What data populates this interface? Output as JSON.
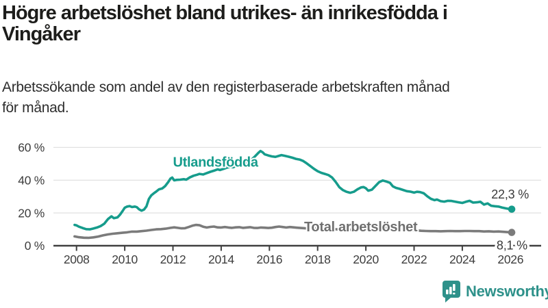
{
  "title": {
    "line1": "Högre arbetslöshet bland utrikes- än inrikesfödda i",
    "line2": "Vingåker",
    "full": "Högre arbetslöshet bland utrikes- än inrikesfödda i Vingåker"
  },
  "subtitle": {
    "line1": "Arbetssökande som andel av den registerbaserade arbetskraften månad",
    "line2": "för månad.",
    "full": "Arbetssökande som andel av den registerbaserade arbetskraften månad för månad."
  },
  "logo": {
    "text": "Newsworthy",
    "icon": "bar-chart-speech-bubble-icon",
    "color": "#2e918a"
  },
  "colors": {
    "accent_teal": "#169c8c",
    "line_gray": "#7b7b7b",
    "label_gray": "#6f6f6f",
    "axis": "#3f3f3f",
    "tick_text": "#3d3d3d",
    "gridline": "#e1e1e1",
    "value_text": "#3a3a3a"
  },
  "chart_data": {
    "type": "line",
    "title": "Högre arbetslöshet bland utrikes- än inrikesfödda i Vingåker",
    "subtitle": "Arbetssökande som andel av den registerbaserade arbetskraften månad för månad.",
    "grid": "horizontal",
    "legend_position": "inline-labels",
    "x_axis": {
      "range": [
        2007.8,
        2026.5
      ],
      "ticks": [
        2008,
        2010,
        2012,
        2014,
        2016,
        2018,
        2020,
        2022,
        2024,
        2026
      ],
      "labels": [
        "2008",
        "2010",
        "2012",
        "2014",
        "2016",
        "2018",
        "2020",
        "2022",
        "2024",
        "2026"
      ]
    },
    "y_axis": {
      "range": [
        0,
        63
      ],
      "unit": "%",
      "ticks": [
        0,
        20,
        40,
        60
      ],
      "labels": [
        "0 %",
        "20 %",
        "40 %",
        "60 %"
      ]
    },
    "series": [
      {
        "name": "Utlandsfödda",
        "color": "#169c8c",
        "label_color": "#169c8c",
        "end_value": 22.3,
        "end_label": "22,3 %",
        "name_label_at": [
          2012.0,
          48.3
        ],
        "name_label_anchor": "start",
        "value_label_at": [
          2026.76,
          28.9
        ],
        "value_label_anchor": "end",
        "value_label_halo": false,
        "points": [
          [
            2007.92,
            12.7
          ],
          [
            2008.0,
            12.4
          ],
          [
            2008.1,
            11.6
          ],
          [
            2008.25,
            10.8
          ],
          [
            2008.4,
            10.1
          ],
          [
            2008.55,
            10.0
          ],
          [
            2008.7,
            10.5
          ],
          [
            2008.85,
            11.1
          ],
          [
            2009.0,
            12.0
          ],
          [
            2009.15,
            13.4
          ],
          [
            2009.3,
            16.2
          ],
          [
            2009.45,
            17.9
          ],
          [
            2009.55,
            16.8
          ],
          [
            2009.7,
            17.3
          ],
          [
            2009.8,
            18.9
          ],
          [
            2009.92,
            21.4
          ],
          [
            2010.0,
            23.2
          ],
          [
            2010.1,
            23.9
          ],
          [
            2010.2,
            24.2
          ],
          [
            2010.3,
            23.6
          ],
          [
            2010.42,
            23.9
          ],
          [
            2010.5,
            23.5
          ],
          [
            2010.6,
            22.2
          ],
          [
            2010.7,
            21.4
          ],
          [
            2010.8,
            22.1
          ],
          [
            2010.9,
            24.0
          ],
          [
            2011.0,
            28.5
          ],
          [
            2011.1,
            30.7
          ],
          [
            2011.2,
            31.9
          ],
          [
            2011.3,
            33.0
          ],
          [
            2011.42,
            34.4
          ],
          [
            2011.55,
            34.9
          ],
          [
            2011.67,
            36.3
          ],
          [
            2011.8,
            38.8
          ],
          [
            2011.9,
            41.0
          ],
          [
            2011.97,
            41.6
          ],
          [
            2012.05,
            39.9
          ],
          [
            2012.15,
            40.2
          ],
          [
            2012.3,
            40.3
          ],
          [
            2012.45,
            40.6
          ],
          [
            2012.55,
            40.3
          ],
          [
            2012.7,
            41.7
          ],
          [
            2012.85,
            42.7
          ],
          [
            2013.0,
            43.3
          ],
          [
            2013.1,
            43.8
          ],
          [
            2013.25,
            43.5
          ],
          [
            2013.4,
            44.3
          ],
          [
            2013.55,
            45.1
          ],
          [
            2013.7,
            45.8
          ],
          [
            2013.85,
            46.6
          ],
          [
            2013.95,
            46.2
          ],
          [
            2014.1,
            46.9
          ],
          [
            2014.25,
            47.7
          ],
          [
            2014.4,
            48.2
          ],
          [
            2014.5,
            47.9
          ],
          [
            2014.65,
            48.9
          ],
          [
            2014.8,
            49.6
          ],
          [
            2014.95,
            50.2
          ],
          [
            2015.1,
            51.1
          ],
          [
            2015.25,
            52.4
          ],
          [
            2015.4,
            54.5
          ],
          [
            2015.55,
            56.8
          ],
          [
            2015.63,
            57.8
          ],
          [
            2015.72,
            57.0
          ],
          [
            2015.8,
            55.8
          ],
          [
            2015.95,
            55.1
          ],
          [
            2016.1,
            54.5
          ],
          [
            2016.25,
            54.2
          ],
          [
            2016.4,
            54.9
          ],
          [
            2016.5,
            55.3
          ],
          [
            2016.65,
            54.8
          ],
          [
            2016.8,
            54.3
          ],
          [
            2016.95,
            53.7
          ],
          [
            2017.1,
            53.0
          ],
          [
            2017.25,
            52.6
          ],
          [
            2017.4,
            51.7
          ],
          [
            2017.55,
            50.2
          ],
          [
            2017.7,
            48.6
          ],
          [
            2017.85,
            46.9
          ],
          [
            2018.0,
            45.5
          ],
          [
            2018.15,
            44.5
          ],
          [
            2018.3,
            43.8
          ],
          [
            2018.45,
            43.1
          ],
          [
            2018.6,
            41.6
          ],
          [
            2018.75,
            38.9
          ],
          [
            2018.9,
            35.7
          ],
          [
            2019.05,
            33.9
          ],
          [
            2019.2,
            32.9
          ],
          [
            2019.35,
            32.3
          ],
          [
            2019.5,
            32.9
          ],
          [
            2019.65,
            34.4
          ],
          [
            2019.8,
            35.6
          ],
          [
            2019.9,
            35.8
          ],
          [
            2020.0,
            35.1
          ],
          [
            2020.1,
            33.6
          ],
          [
            2020.25,
            34.2
          ],
          [
            2020.4,
            36.5
          ],
          [
            2020.55,
            38.8
          ],
          [
            2020.7,
            39.8
          ],
          [
            2020.85,
            39.2
          ],
          [
            2021.0,
            38.4
          ],
          [
            2021.12,
            36.2
          ],
          [
            2021.25,
            35.3
          ],
          [
            2021.4,
            34.7
          ],
          [
            2021.55,
            34.0
          ],
          [
            2021.7,
            33.3
          ],
          [
            2021.85,
            33.0
          ],
          [
            2022.0,
            32.4
          ],
          [
            2022.12,
            32.9
          ],
          [
            2022.25,
            32.7
          ],
          [
            2022.4,
            32.0
          ],
          [
            2022.55,
            30.1
          ],
          [
            2022.7,
            28.6
          ],
          [
            2022.85,
            27.8
          ],
          [
            2022.95,
            28.2
          ],
          [
            2023.1,
            27.2
          ],
          [
            2023.25,
            26.9
          ],
          [
            2023.4,
            27.4
          ],
          [
            2023.55,
            27.3
          ],
          [
            2023.7,
            26.9
          ],
          [
            2023.85,
            26.5
          ],
          [
            2024.0,
            26.1
          ],
          [
            2024.15,
            26.8
          ],
          [
            2024.3,
            27.4
          ],
          [
            2024.45,
            26.3
          ],
          [
            2024.6,
            26.5
          ],
          [
            2024.75,
            26.8
          ],
          [
            2024.9,
            25.1
          ],
          [
            2025.05,
            25.8
          ],
          [
            2025.2,
            24.4
          ],
          [
            2025.35,
            24.1
          ],
          [
            2025.5,
            23.9
          ],
          [
            2025.65,
            23.3
          ],
          [
            2025.8,
            22.8
          ],
          [
            2025.95,
            22.4
          ],
          [
            2026.05,
            22.3
          ]
        ]
      },
      {
        "name": "Total arbetslöshet",
        "color": "#7b7b7b",
        "label_color": "#6f6f6f",
        "end_value": 8.1,
        "end_label": "8,1 %",
        "name_label_at": [
          2017.44,
          8.8
        ],
        "name_label_anchor": "start",
        "value_label_at": [
          2026.7,
          -2.3
        ],
        "value_label_anchor": "end",
        "value_label_halo": true,
        "points": [
          [
            2007.92,
            5.7
          ],
          [
            2008.1,
            5.2
          ],
          [
            2008.3,
            4.9
          ],
          [
            2008.5,
            4.8
          ],
          [
            2008.7,
            5.1
          ],
          [
            2008.9,
            5.6
          ],
          [
            2009.1,
            6.3
          ],
          [
            2009.3,
            6.9
          ],
          [
            2009.5,
            7.3
          ],
          [
            2009.7,
            7.6
          ],
          [
            2009.9,
            7.9
          ],
          [
            2010.1,
            8.2
          ],
          [
            2010.3,
            8.6
          ],
          [
            2010.5,
            8.6
          ],
          [
            2010.7,
            8.9
          ],
          [
            2010.9,
            9.2
          ],
          [
            2011.1,
            9.6
          ],
          [
            2011.3,
            10.0
          ],
          [
            2011.5,
            10.1
          ],
          [
            2011.7,
            10.4
          ],
          [
            2011.9,
            10.9
          ],
          [
            2012.05,
            11.2
          ],
          [
            2012.2,
            10.9
          ],
          [
            2012.35,
            10.6
          ],
          [
            2012.5,
            10.7
          ],
          [
            2012.65,
            11.4
          ],
          [
            2012.8,
            12.2
          ],
          [
            2012.95,
            12.7
          ],
          [
            2013.1,
            12.5
          ],
          [
            2013.25,
            11.6
          ],
          [
            2013.4,
            11.1
          ],
          [
            2013.55,
            11.5
          ],
          [
            2013.7,
            11.7
          ],
          [
            2013.85,
            11.2
          ],
          [
            2014.0,
            11.1
          ],
          [
            2014.15,
            11.4
          ],
          [
            2014.3,
            11.1
          ],
          [
            2014.45,
            10.9
          ],
          [
            2014.6,
            11.2
          ],
          [
            2014.75,
            11.3
          ],
          [
            2014.9,
            10.9
          ],
          [
            2015.05,
            11.1
          ],
          [
            2015.2,
            11.3
          ],
          [
            2015.35,
            10.9
          ],
          [
            2015.5,
            10.8
          ],
          [
            2015.65,
            11.1
          ],
          [
            2015.8,
            11.0
          ],
          [
            2015.95,
            10.8
          ],
          [
            2016.1,
            11.0
          ],
          [
            2016.25,
            11.4
          ],
          [
            2016.4,
            11.7
          ],
          [
            2016.55,
            11.4
          ],
          [
            2016.7,
            11.1
          ],
          [
            2016.85,
            11.4
          ],
          [
            2017.0,
            11.2
          ],
          [
            2017.15,
            11.0
          ],
          [
            2017.3,
            10.8
          ],
          [
            2017.5,
            10.6
          ],
          [
            2017.7,
            10.5
          ],
          [
            2017.9,
            10.5
          ],
          [
            2018.1,
            10.3
          ],
          [
            2018.3,
            10.2
          ],
          [
            2018.5,
            10.2
          ],
          [
            2018.7,
            10.1
          ],
          [
            2018.9,
            9.9
          ],
          [
            2019.1,
            9.8
          ],
          [
            2019.3,
            9.7
          ],
          [
            2019.5,
            9.9
          ],
          [
            2019.7,
            10.0
          ],
          [
            2019.9,
            10.0
          ],
          [
            2020.1,
            10.4
          ],
          [
            2020.3,
            10.9
          ],
          [
            2020.5,
            11.2
          ],
          [
            2020.7,
            11.2
          ],
          [
            2020.9,
            11.0
          ],
          [
            2021.1,
            10.7
          ],
          [
            2021.3,
            10.4
          ],
          [
            2021.5,
            10.1
          ],
          [
            2021.7,
            9.8
          ],
          [
            2021.9,
            9.5
          ],
          [
            2022.1,
            9.3
          ],
          [
            2022.3,
            9.1
          ],
          [
            2022.5,
            9.0
          ],
          [
            2022.7,
            8.9
          ],
          [
            2022.9,
            8.9
          ],
          [
            2023.1,
            8.8
          ],
          [
            2023.3,
            8.9
          ],
          [
            2023.5,
            9.0
          ],
          [
            2023.7,
            8.9
          ],
          [
            2023.9,
            8.9
          ],
          [
            2024.1,
            9.0
          ],
          [
            2024.3,
            9.0
          ],
          [
            2024.5,
            8.9
          ],
          [
            2024.7,
            8.9
          ],
          [
            2024.9,
            8.7
          ],
          [
            2025.1,
            8.8
          ],
          [
            2025.3,
            8.6
          ],
          [
            2025.5,
            8.7
          ],
          [
            2025.7,
            8.5
          ],
          [
            2025.85,
            8.3
          ],
          [
            2026.05,
            8.1
          ]
        ]
      }
    ]
  }
}
